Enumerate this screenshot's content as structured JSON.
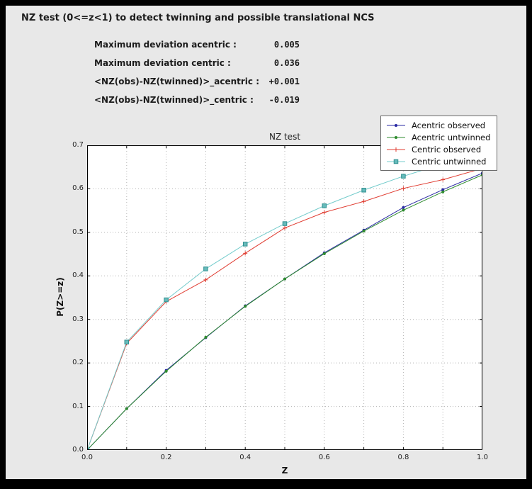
{
  "window": {
    "frame_color": "#000000",
    "panel_color": "#e8e8e8"
  },
  "header": {
    "title": "NZ test (0<=z<1) to detect twinning and possible translational NCS"
  },
  "stats": {
    "rows": [
      {
        "label": "Maximum deviation acentric :",
        "value": "0.005"
      },
      {
        "label": "Maximum deviation centric :",
        "value": "0.036"
      },
      {
        "label": "<NZ(obs)-NZ(twinned)>_acentric :",
        "value": "+0.001"
      },
      {
        "label": "<NZ(obs)-NZ(twinned)>_centric :",
        "value": "-0.019"
      }
    ]
  },
  "chart_data": {
    "type": "line",
    "title": "NZ test",
    "xlabel": "Z",
    "ylabel": "P(Z>=z)",
    "xlim": [
      0.0,
      1.0
    ],
    "ylim": [
      0.0,
      0.7
    ],
    "x_ticks": [
      0.0,
      0.2,
      0.4,
      0.6,
      0.8,
      1.0
    ],
    "x_grid_ticks": [
      0.0,
      0.1,
      0.2,
      0.3,
      0.4,
      0.5,
      0.6,
      0.7,
      0.8,
      0.9,
      1.0
    ],
    "y_ticks": [
      0.0,
      0.1,
      0.2,
      0.3,
      0.4,
      0.5,
      0.6,
      0.7
    ],
    "grid": true,
    "grid_color": "#b3b3b3",
    "legend_position": "upper right",
    "x": [
      0.0,
      0.1,
      0.2,
      0.3,
      0.4,
      0.5,
      0.6,
      0.7,
      0.8,
      0.9,
      1.0
    ],
    "series": [
      {
        "name": "Acentric observed",
        "color": "#2929a3",
        "marker": "dot",
        "values": [
          0.0,
          0.095,
          0.183,
          0.258,
          0.331,
          0.393,
          0.453,
          0.505,
          0.557,
          0.598,
          0.636
        ]
      },
      {
        "name": "Acentric untwinned",
        "color": "#2e8b2e",
        "marker": "dot",
        "values": [
          0.0,
          0.095,
          0.181,
          0.259,
          0.33,
          0.393,
          0.451,
          0.503,
          0.551,
          0.593,
          0.632
        ]
      },
      {
        "name": "Centric observed",
        "color": "#e03c31",
        "marker": "plus",
        "values": [
          0.0,
          0.245,
          0.341,
          0.391,
          0.452,
          0.51,
          0.546,
          0.571,
          0.601,
          0.621,
          0.647
        ]
      },
      {
        "name": "Centric untwinned",
        "color": "#74cccc",
        "marker": "square",
        "marker_fill": "#66bbbb",
        "marker_edge": "#2f8f8f",
        "values": [
          0.0,
          0.248,
          0.345,
          0.416,
          0.473,
          0.52,
          0.561,
          0.597,
          0.629,
          0.657,
          0.683
        ]
      }
    ]
  }
}
